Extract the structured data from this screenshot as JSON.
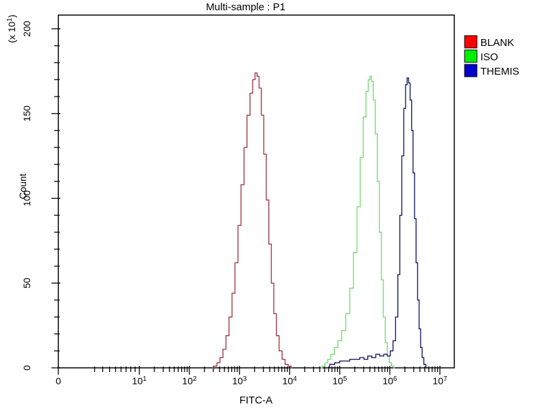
{
  "title": "Multi-sample : P1",
  "axes": {
    "x": {
      "label": "FITC-A",
      "scale": "biexponential-log",
      "major_ticks": [
        "0",
        "10^1",
        "10^2",
        "10^3",
        "10^4",
        "10^5",
        "10^6",
        "10^7"
      ],
      "minor_ticks": "log sub-decade ticks 2-9 in each decade"
    },
    "y": {
      "label": "Count",
      "multiplier": "(x 10^1)",
      "major_ticks": [
        "0",
        "50",
        "100",
        "150",
        "200"
      ],
      "minor_tick_step": 10
    }
  },
  "legend": [
    {
      "label": "BLANK",
      "swatch_color": "#ff0000"
    },
    {
      "label": "ISO",
      "swatch_color": "#00ee00"
    },
    {
      "label": "THEMIS",
      "swatch_color": "#0000cc"
    }
  ],
  "chart_data": {
    "type": "line",
    "subtype": "flow-cytometry-histogram-overlay",
    "title": "Multi-sample : P1",
    "xlabel": "FITC-A",
    "ylabel": "Count",
    "y_axis_multiplier": "x 10^1",
    "x_scale": "log10 (biexponential, linear segment 0 to 10^1)",
    "x_range": "0 to ~2x10^7",
    "ylim": [
      0,
      208
    ],
    "legend_position": "right-outside-top",
    "grid": false,
    "series": [
      {
        "name": "BLANK",
        "color": "#a23c4c",
        "peak_x": 2300,
        "peak_count": 174,
        "points_log10x_count": [
          [
            2.45,
            0
          ],
          [
            2.52,
            1
          ],
          [
            2.58,
            3
          ],
          [
            2.64,
            6
          ],
          [
            2.7,
            11
          ],
          [
            2.76,
            19
          ],
          [
            2.82,
            30
          ],
          [
            2.88,
            44
          ],
          [
            2.94,
            62
          ],
          [
            3.0,
            84
          ],
          [
            3.06,
            108
          ],
          [
            3.12,
            130
          ],
          [
            3.18,
            149
          ],
          [
            3.24,
            162
          ],
          [
            3.29,
            170
          ],
          [
            3.33,
            174
          ],
          [
            3.37,
            172
          ],
          [
            3.41,
            165
          ],
          [
            3.46,
            149
          ],
          [
            3.51,
            126
          ],
          [
            3.56,
            99
          ],
          [
            3.61,
            73
          ],
          [
            3.66,
            50
          ],
          [
            3.71,
            32
          ],
          [
            3.76,
            19
          ],
          [
            3.82,
            10
          ],
          [
            3.88,
            5
          ],
          [
            3.94,
            2
          ],
          [
            4.0,
            1
          ],
          [
            4.06,
            0
          ]
        ]
      },
      {
        "name": "ISO",
        "color": "#78dc78",
        "peak_x": 420000,
        "peak_count": 172,
        "points_log10x_count": [
          [
            4.62,
            0
          ],
          [
            4.68,
            1
          ],
          [
            4.73,
            3
          ],
          [
            4.79,
            5
          ],
          [
            4.86,
            8
          ],
          [
            4.93,
            12
          ],
          [
            5.0,
            16
          ],
          [
            5.08,
            22
          ],
          [
            5.16,
            32
          ],
          [
            5.24,
            47
          ],
          [
            5.31,
            68
          ],
          [
            5.38,
            95
          ],
          [
            5.44,
            124
          ],
          [
            5.5,
            148
          ],
          [
            5.55,
            163
          ],
          [
            5.59,
            170
          ],
          [
            5.62,
            172
          ],
          [
            5.65,
            169
          ],
          [
            5.69,
            158
          ],
          [
            5.73,
            138
          ],
          [
            5.77,
            110
          ],
          [
            5.81,
            80
          ],
          [
            5.85,
            52
          ],
          [
            5.89,
            30
          ],
          [
            5.93,
            15
          ],
          [
            5.97,
            7
          ],
          [
            6.01,
            3
          ],
          [
            6.06,
            1
          ],
          [
            6.1,
            0
          ]
        ]
      },
      {
        "name": "THEMIS",
        "color": "#1b1b66",
        "peak_x": 2200000,
        "peak_count": 171,
        "points_log10x_count": [
          [
            4.75,
            0
          ],
          [
            4.85,
            2
          ],
          [
            4.95,
            3
          ],
          [
            5.05,
            4
          ],
          [
            5.15,
            4
          ],
          [
            5.25,
            5
          ],
          [
            5.35,
            5
          ],
          [
            5.45,
            6
          ],
          [
            5.52,
            5
          ],
          [
            5.6,
            7
          ],
          [
            5.68,
            6
          ],
          [
            5.76,
            8
          ],
          [
            5.84,
            7
          ],
          [
            5.92,
            8
          ],
          [
            5.98,
            7
          ],
          [
            6.04,
            10
          ],
          [
            6.09,
            16
          ],
          [
            6.14,
            30
          ],
          [
            6.18,
            55
          ],
          [
            6.22,
            90
          ],
          [
            6.26,
            125
          ],
          [
            6.3,
            153
          ],
          [
            6.33,
            167
          ],
          [
            6.36,
            171
          ],
          [
            6.39,
            168
          ],
          [
            6.42,
            158
          ],
          [
            6.45,
            140
          ],
          [
            6.48,
            115
          ],
          [
            6.51,
            88
          ],
          [
            6.54,
            62
          ],
          [
            6.57,
            40
          ],
          [
            6.6,
            23
          ],
          [
            6.63,
            12
          ],
          [
            6.66,
            6
          ],
          [
            6.7,
            2
          ],
          [
            6.74,
            0
          ]
        ]
      }
    ]
  }
}
